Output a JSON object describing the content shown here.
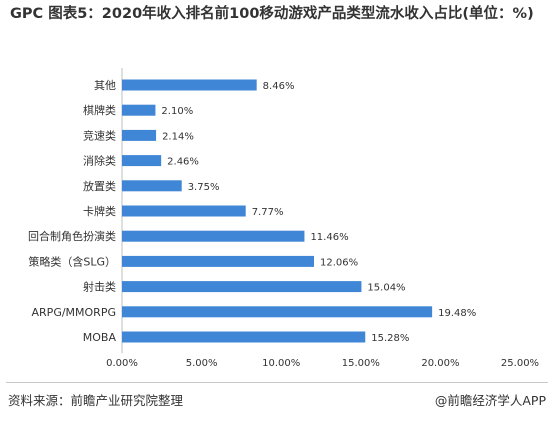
{
  "title": "GPC 图表5：2020年收入排名前100移动游戏产品类型流水收入占比(单位：%)",
  "chart_data": {
    "type": "bar",
    "orientation": "horizontal",
    "title": "GPC 图表5：2020年收入排名前100移动游戏产品类型流水收入占比(单位：%)",
    "categories": [
      "其他",
      "棋牌类",
      "竞速类",
      "消除类",
      "放置类",
      "卡牌类",
      "回合制角色扮演类",
      "策略类（含SLG）",
      "射击类",
      "ARPG/MMORPG",
      "MOBA"
    ],
    "values": [
      8.46,
      2.1,
      2.14,
      2.46,
      3.75,
      7.77,
      11.46,
      12.06,
      15.04,
      19.48,
      15.28
    ],
    "value_labels": [
      "8.46%",
      "2.10%",
      "2.14%",
      "2.46%",
      "3.75%",
      "7.77%",
      "11.46%",
      "12.06%",
      "15.04%",
      "19.48%",
      "15.28%"
    ],
    "xlim": [
      0,
      25
    ],
    "x_ticks": [
      "0.00%",
      "5.00%",
      "10.00%",
      "15.00%",
      "20.00%",
      "25.00%"
    ],
    "bar_color": "#3f86d6",
    "grid": false
  },
  "footer": {
    "source": "资料来源：前瞻产业研究院整理",
    "credit": "@前瞻经济学人APP"
  }
}
